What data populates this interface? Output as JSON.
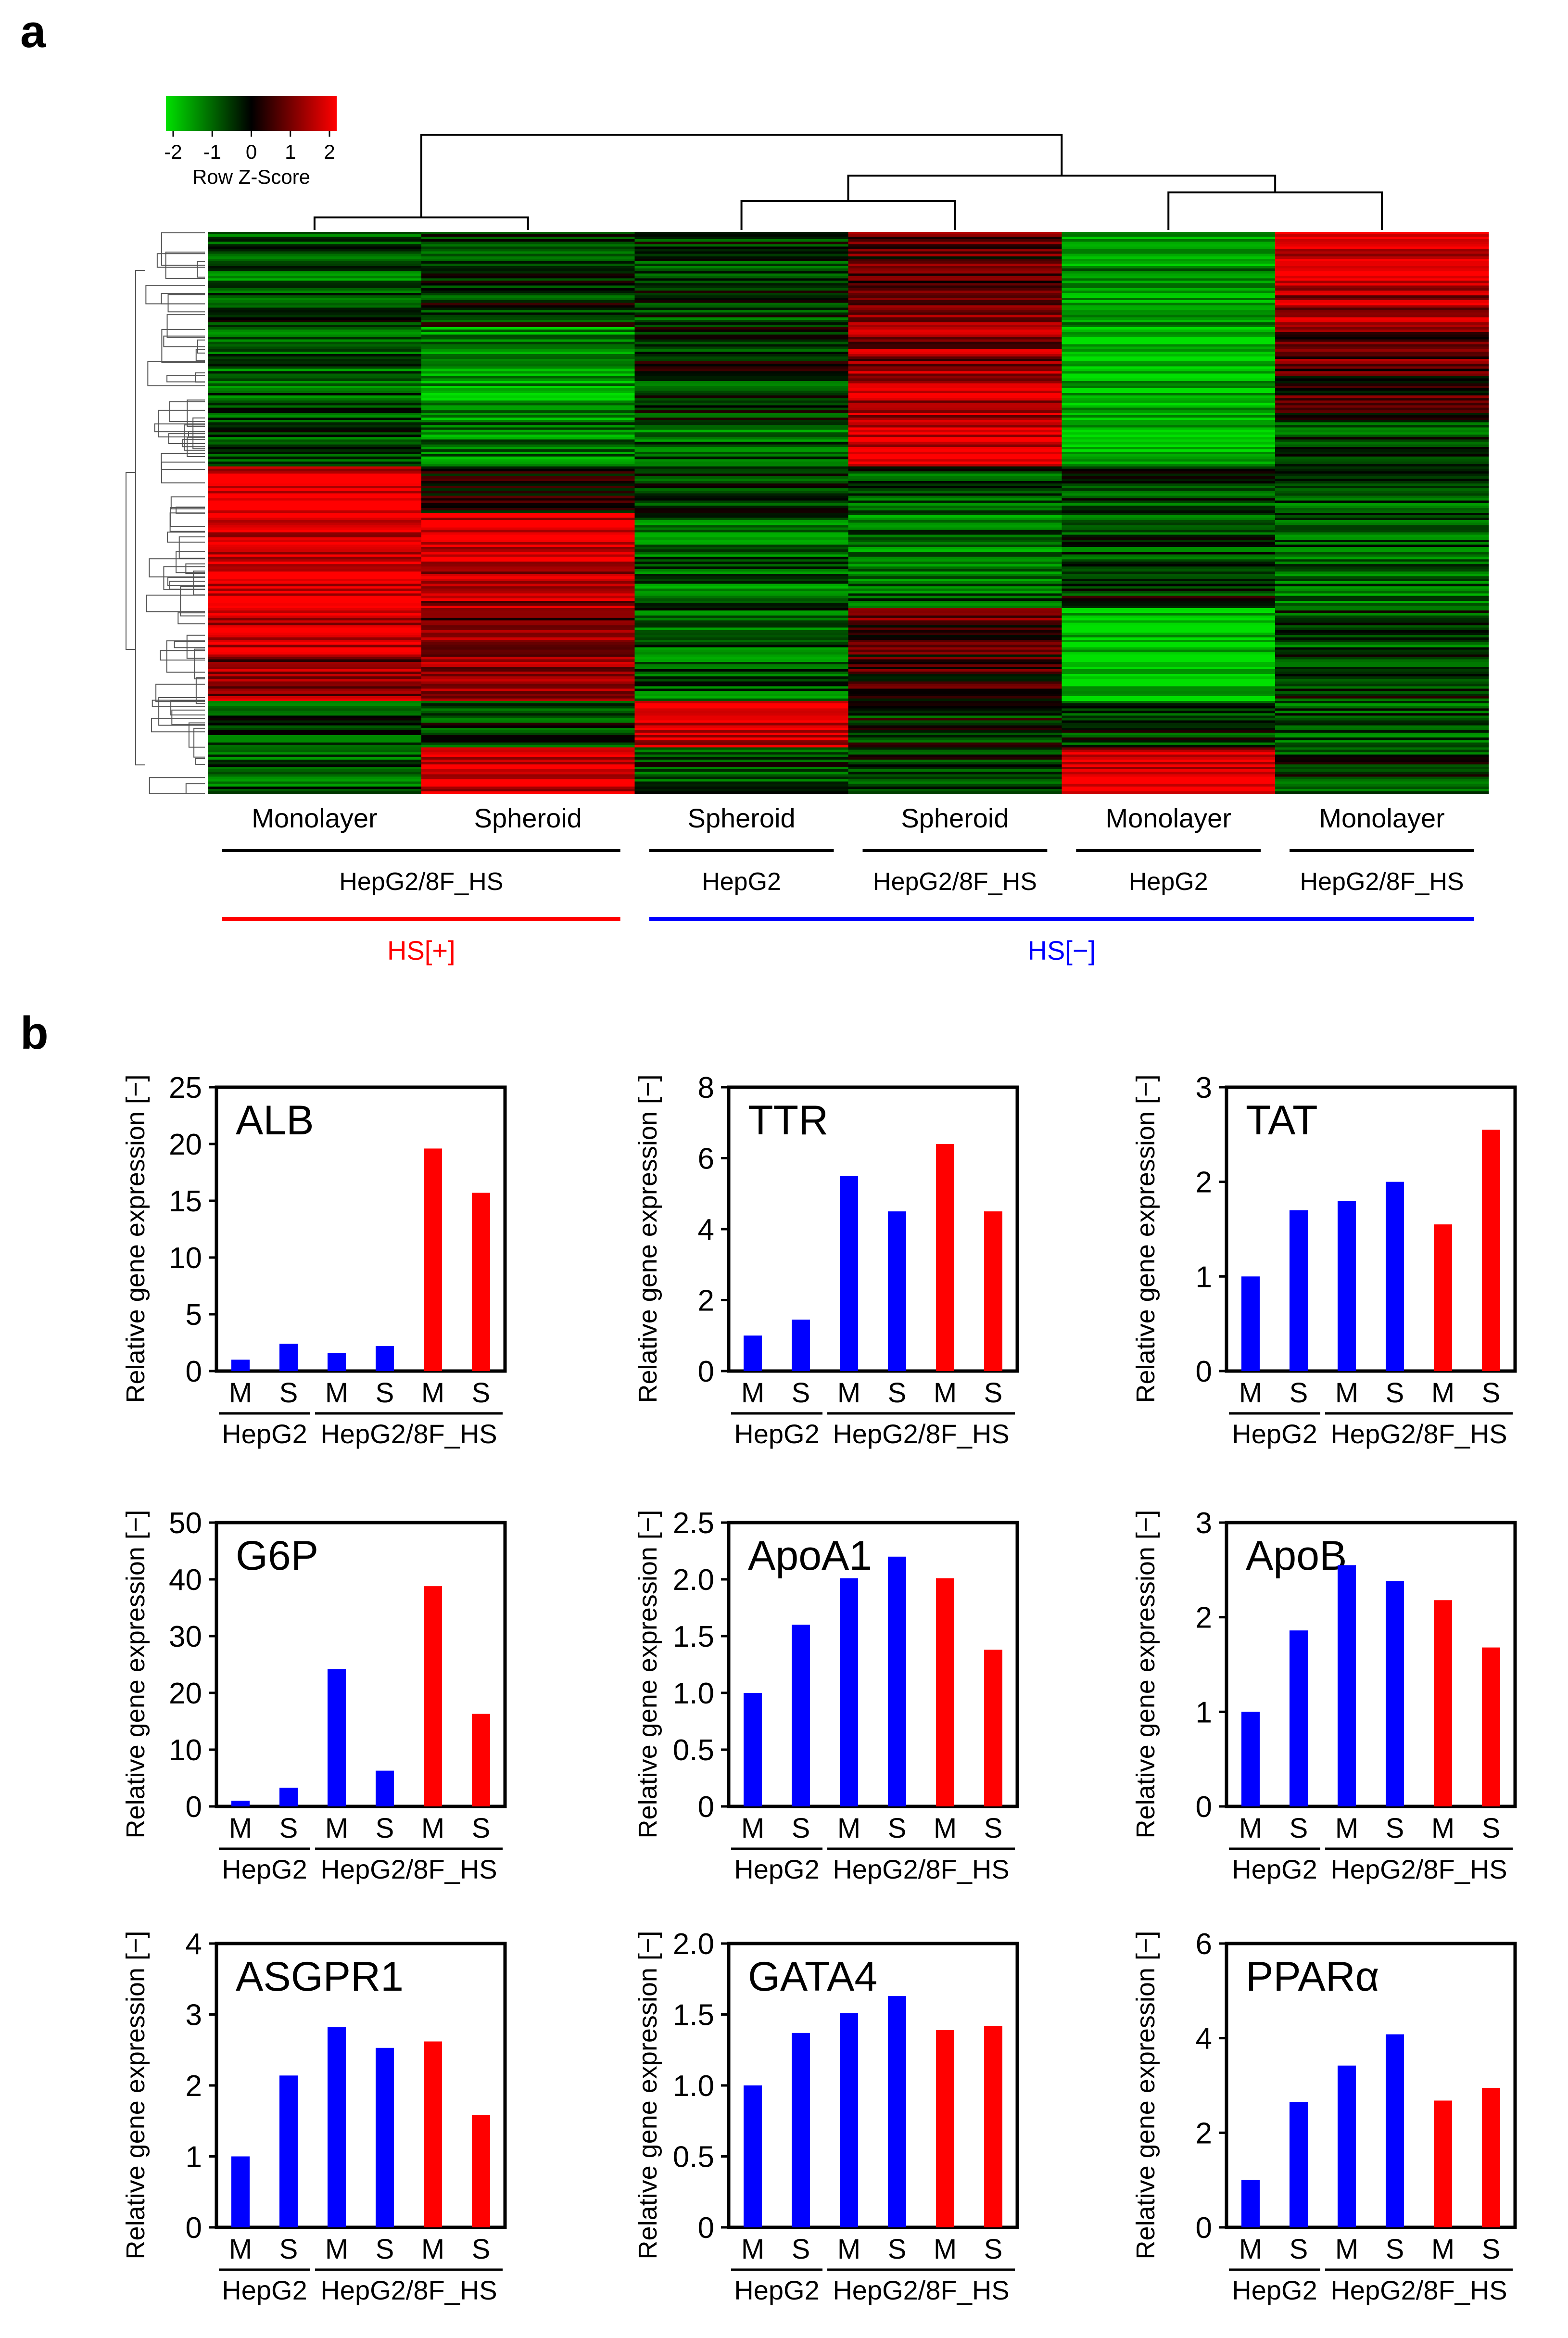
{
  "panel_labels": {
    "a": "a",
    "b": "b"
  },
  "colors": {
    "green": "#00e000",
    "black": "#000000",
    "red": "#ff0000",
    "blue": "#0000ff",
    "hs_pos": "#ff0000",
    "hs_neg": "#0000ff"
  },
  "heatmap": {
    "legend": {
      "ticks": [
        "-2",
        "-1",
        "0",
        "1",
        "2"
      ],
      "title": "Row Z-Score"
    },
    "columns": [
      {
        "condition": "Monolayer",
        "cell_line": "HepG2/8F_HS",
        "group": "HS[+]"
      },
      {
        "condition": "Spheroid",
        "cell_line": "HepG2/8F_HS",
        "group": "HS[+]"
      },
      {
        "condition": "Spheroid",
        "cell_line": "HepG2",
        "group": "HS[−]"
      },
      {
        "condition": "Spheroid",
        "cell_line": "HepG2/8F_HS",
        "group": "HS[−]"
      },
      {
        "condition": "Monolayer",
        "cell_line": "HepG2",
        "group": "HS[−]"
      },
      {
        "condition": "Monolayer",
        "cell_line": "HepG2/8F_HS",
        "group": "HS[−]"
      }
    ],
    "cell_line_labels": [
      "HepG2/8F_HS",
      "HepG2",
      "HepG2/8F_HS",
      "HepG2",
      "HepG2/8F_HS"
    ],
    "group_labels": [
      "HS[+]",
      "HS[−]"
    ],
    "column_profile_z": [
      [
        -0.8,
        -0.5,
        -0.4,
        0.6,
        -1.4,
        1.8
      ],
      [
        -0.6,
        -0.3,
        -0.5,
        0.8,
        -1.2,
        1.2
      ],
      [
        -0.9,
        -1.2,
        -0.3,
        1.1,
        -1.7,
        0.7
      ],
      [
        -0.7,
        -1.4,
        -0.5,
        1.5,
        -1.5,
        0.4
      ],
      [
        -0.6,
        -1.0,
        -0.8,
        1.8,
        -1.8,
        -0.5
      ],
      [
        1.9,
        0.3,
        -0.6,
        -0.7,
        -0.6,
        -0.8
      ],
      [
        1.7,
        1.8,
        -0.8,
        -0.9,
        -0.5,
        -0.7
      ],
      [
        1.8,
        1.2,
        -0.9,
        -0.8,
        -0.3,
        -0.9
      ],
      [
        1.6,
        0.9,
        -0.7,
        0.6,
        -1.8,
        -0.6
      ],
      [
        1.1,
        1.0,
        -0.8,
        0.4,
        -1.9,
        -0.4
      ],
      [
        -0.5,
        -0.4,
        1.6,
        -0.3,
        -0.4,
        -0.6
      ],
      [
        -0.8,
        1.8,
        -0.6,
        -0.4,
        1.6,
        -0.5
      ]
    ]
  },
  "y_axis_label": "Relative gene expression [−]",
  "x_tick_labels": [
    "M",
    "S",
    "M",
    "S",
    "M",
    "S"
  ],
  "x_group_labels": [
    "HepG2",
    "HepG2/8F_HS"
  ],
  "chart_data": [
    {
      "type": "bar",
      "title": "ALB",
      "categories": [
        "M",
        "S",
        "M",
        "S",
        "M",
        "S"
      ],
      "groups": [
        "HepG2",
        "HepG2/8F_HS"
      ],
      "values": [
        1.0,
        2.4,
        1.6,
        2.2,
        19.6,
        15.7
      ],
      "series_colors": [
        "blue",
        "blue",
        "blue",
        "blue",
        "red",
        "red"
      ],
      "ylim": [
        0,
        25
      ],
      "yticks": [
        0,
        5,
        10,
        15,
        20,
        25
      ],
      "ytick_labels": [
        "0",
        "5",
        "10",
        "15",
        "20",
        "25"
      ],
      "ylabel": "Relative gene expression [−]"
    },
    {
      "type": "bar",
      "title": "TTR",
      "categories": [
        "M",
        "S",
        "M",
        "S",
        "M",
        "S"
      ],
      "groups": [
        "HepG2",
        "HepG2/8F_HS"
      ],
      "values": [
        1.0,
        1.45,
        5.5,
        4.5,
        6.4,
        4.5
      ],
      "series_colors": [
        "blue",
        "blue",
        "blue",
        "blue",
        "red",
        "red"
      ],
      "ylim": [
        0,
        8
      ],
      "yticks": [
        0,
        2,
        4,
        6,
        8
      ],
      "ytick_labels": [
        "0",
        "2",
        "4",
        "6",
        "8"
      ],
      "ylabel": "Relative gene expression [−]"
    },
    {
      "type": "bar",
      "title": "TAT",
      "categories": [
        "M",
        "S",
        "M",
        "S",
        "M",
        "S"
      ],
      "groups": [
        "HepG2",
        "HepG2/8F_HS"
      ],
      "values": [
        1.0,
        1.7,
        1.8,
        2.0,
        1.55,
        2.55
      ],
      "series_colors": [
        "blue",
        "blue",
        "blue",
        "blue",
        "red",
        "red"
      ],
      "ylim": [
        0,
        3
      ],
      "yticks": [
        0,
        1,
        2,
        3
      ],
      "ytick_labels": [
        "0",
        "1",
        "2",
        "3"
      ],
      "ylabel": "Relative gene expression [−]"
    },
    {
      "type": "bar",
      "title": "G6P",
      "categories": [
        "M",
        "S",
        "M",
        "S",
        "M",
        "S"
      ],
      "groups": [
        "HepG2",
        "HepG2/8F_HS"
      ],
      "values": [
        1.0,
        3.3,
        24.2,
        6.3,
        38.8,
        16.3
      ],
      "series_colors": [
        "blue",
        "blue",
        "blue",
        "blue",
        "red",
        "red"
      ],
      "ylim": [
        0,
        50
      ],
      "yticks": [
        0,
        10,
        20,
        30,
        40,
        50
      ],
      "ytick_labels": [
        "0",
        "10",
        "20",
        "30",
        "40",
        "50"
      ],
      "ylabel": "Relative gene expression [−]"
    },
    {
      "type": "bar",
      "title": "ApoA1",
      "categories": [
        "M",
        "S",
        "M",
        "S",
        "M",
        "S"
      ],
      "groups": [
        "HepG2",
        "HepG2/8F_HS"
      ],
      "values": [
        1.0,
        1.6,
        2.01,
        2.2,
        2.01,
        1.38
      ],
      "series_colors": [
        "blue",
        "blue",
        "blue",
        "blue",
        "red",
        "red"
      ],
      "ylim": [
        0,
        2.5
      ],
      "yticks": [
        0,
        0.5,
        1.0,
        1.5,
        2.0,
        2.5
      ],
      "ytick_labels": [
        "0",
        "0.5",
        "1.0",
        "1.5",
        "2.0",
        "2.5"
      ],
      "ylabel": "Relative gene expression [−]"
    },
    {
      "type": "bar",
      "title": "ApoB",
      "categories": [
        "M",
        "S",
        "M",
        "S",
        "M",
        "S"
      ],
      "groups": [
        "HepG2",
        "HepG2/8F_HS"
      ],
      "values": [
        1.0,
        1.86,
        2.55,
        2.38,
        2.18,
        1.68
      ],
      "series_colors": [
        "blue",
        "blue",
        "blue",
        "blue",
        "red",
        "red"
      ],
      "ylim": [
        0,
        3
      ],
      "yticks": [
        0,
        1,
        2,
        3
      ],
      "ytick_labels": [
        "0",
        "1",
        "2",
        "3"
      ],
      "ylabel": "Relative gene expression [−]"
    },
    {
      "type": "bar",
      "title": "ASGPR1",
      "categories": [
        "M",
        "S",
        "M",
        "S",
        "M",
        "S"
      ],
      "groups": [
        "HepG2",
        "HepG2/8F_HS"
      ],
      "values": [
        1.0,
        2.14,
        2.82,
        2.53,
        2.62,
        1.58
      ],
      "series_colors": [
        "blue",
        "blue",
        "blue",
        "blue",
        "red",
        "red"
      ],
      "ylim": [
        0,
        4
      ],
      "yticks": [
        0,
        1,
        2,
        3,
        4
      ],
      "ytick_labels": [
        "0",
        "1",
        "2",
        "3",
        "4"
      ],
      "ylabel": "Relative gene expression [−]"
    },
    {
      "type": "bar",
      "title": "GATA4",
      "categories": [
        "M",
        "S",
        "M",
        "S",
        "M",
        "S"
      ],
      "groups": [
        "HepG2",
        "HepG2/8F_HS"
      ],
      "values": [
        1.0,
        1.37,
        1.51,
        1.63,
        1.39,
        1.42
      ],
      "series_colors": [
        "blue",
        "blue",
        "blue",
        "blue",
        "red",
        "red"
      ],
      "ylim": [
        0,
        2.0
      ],
      "yticks": [
        0,
        0.5,
        1.0,
        1.5,
        2.0
      ],
      "ytick_labels": [
        "0",
        "0.5",
        "1.0",
        "1.5",
        "2.0"
      ],
      "ylabel": "Relative gene expression [−]"
    },
    {
      "type": "bar",
      "title": "PPARα",
      "categories": [
        "M",
        "S",
        "M",
        "S",
        "M",
        "S"
      ],
      "groups": [
        "HepG2",
        "HepG2/8F_HS"
      ],
      "values": [
        1.0,
        2.65,
        3.42,
        4.08,
        2.68,
        2.95
      ],
      "series_colors": [
        "blue",
        "blue",
        "blue",
        "blue",
        "red",
        "red"
      ],
      "ylim": [
        0,
        6
      ],
      "yticks": [
        0,
        2,
        4,
        6
      ],
      "ytick_labels": [
        "0",
        "2",
        "4",
        "6"
      ],
      "ylabel": "Relative gene expression [−]"
    }
  ]
}
